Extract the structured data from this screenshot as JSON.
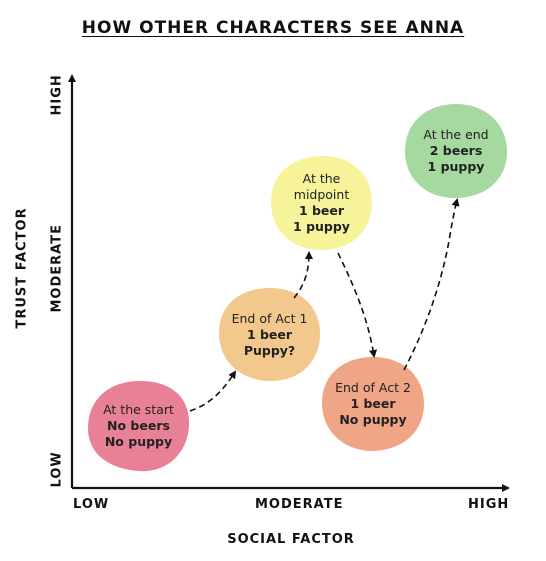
{
  "title": "HOW OTHER CHARACTERS SEE ANNA",
  "y_axis": {
    "label": "TRUST FACTOR",
    "ticks": [
      "LOW",
      "MODERATE",
      "HIGH"
    ]
  },
  "x_axis": {
    "label": "SOCIAL FACTOR",
    "ticks": [
      "LOW",
      "MODERATE",
      "HIGH"
    ]
  },
  "stages": [
    {
      "caption": "At the start",
      "line1": "No beers",
      "line2": "No puppy",
      "color": "#e88196"
    },
    {
      "caption": "End of Act 1",
      "line1": "1 beer",
      "line2": "Puppy?",
      "color": "#f2c88d"
    },
    {
      "caption": "At the",
      "caption2": "midpoint",
      "line1": "1 beer",
      "line2": "1 puppy",
      "color": "#f6f39b"
    },
    {
      "caption": "End of Act 2",
      "line1": "1 beer",
      "line2": "No puppy",
      "color": "#f0a586"
    },
    {
      "caption": "At the end",
      "line1": "2 beers",
      "line2": "1 puppy",
      "color": "#a6d9a0"
    }
  ]
}
